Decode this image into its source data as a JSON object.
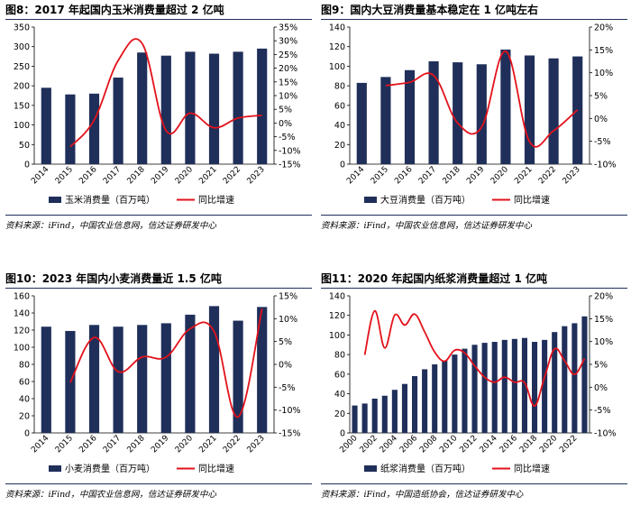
{
  "colors": {
    "bar": "#1f2f5a",
    "line": "#e3121b",
    "rule": "#1f2f5a"
  },
  "charts": [
    {
      "title": "图8：2017 年起国内玉米消费量超过 2 亿吨",
      "source": "资料来源：iFind，中国农业信息网，信达证券研发中心",
      "chart_data": {
        "type": "bar+line",
        "categories": [
          "2014",
          "2015",
          "2016",
          "2017",
          "2018",
          "2019",
          "2020",
          "2021",
          "2022",
          "2023"
        ],
        "series": [
          {
            "name": "玉米消费量（百万吨）",
            "axis": "left",
            "type": "bar",
            "values": [
              195,
              178,
              180,
              221,
              285,
              277,
              287,
              282,
              287,
              295
            ]
          },
          {
            "name": "同比增速",
            "axis": "right",
            "type": "line",
            "values": [
              null,
              -8.7,
              1.1,
              22.8,
              29.0,
              -2.8,
              3.6,
              -1.7,
              1.8,
              2.8
            ]
          }
        ],
        "left_axis": {
          "ylim": [
            0,
            350
          ],
          "ticks": [
            "0",
            "50",
            "100",
            "150",
            "200",
            "250",
            "300",
            "350"
          ]
        },
        "right_axis": {
          "ylim": [
            -15,
            35
          ],
          "ticks": [
            "-15%",
            "-10%",
            "-5%",
            "0%",
            "5%",
            "10%",
            "15%",
            "20%",
            "25%",
            "30%",
            "35%"
          ]
        },
        "legend": {
          "bar_label": "玉米消费量（百万吨）",
          "line_label": "同比增速"
        }
      }
    },
    {
      "title": "图9：国内大豆消费量基本稳定在 1 亿吨左右",
      "source": "资料来源：iFind，中国农业信息网，信达证券研发中心",
      "chart_data": {
        "type": "bar+line",
        "categories": [
          "2014",
          "2015",
          "2016",
          "2017",
          "2018",
          "2019",
          "2020",
          "2021",
          "2022",
          "2023"
        ],
        "series": [
          {
            "name": "大豆消费量（百万吨）",
            "axis": "left",
            "type": "bar",
            "values": [
              83,
              89,
              96,
              105,
              104,
              102,
              117,
              111,
              108,
              110
            ]
          },
          {
            "name": "同比增速",
            "axis": "right",
            "type": "line",
            "values": [
              null,
              7.2,
              7.9,
              9.4,
              -1.0,
              -1.9,
              14.7,
              -5.1,
              -2.7,
              1.9
            ]
          }
        ],
        "left_axis": {
          "ylim": [
            0,
            140
          ],
          "ticks": [
            "0",
            "20",
            "40",
            "60",
            "80",
            "100",
            "120",
            "140"
          ]
        },
        "right_axis": {
          "ylim": [
            -10,
            20
          ],
          "ticks": [
            "-10%",
            "-5%",
            "0%",
            "5%",
            "10%",
            "15%",
            "20%"
          ]
        },
        "legend": {
          "bar_label": "大豆消费量（百万吨）",
          "line_label": "同比增速"
        }
      }
    },
    {
      "title": "图10：2023 年国内小麦消费量近 1.5 亿吨",
      "source": "资料来源：iFind，中国农业信息网，信达证券研发中心",
      "chart_data": {
        "type": "bar+line",
        "categories": [
          "2014",
          "2015",
          "2016",
          "2017",
          "2018",
          "2019",
          "2020",
          "2021",
          "2022",
          "2023"
        ],
        "series": [
          {
            "name": "小麦消费量（百万吨）",
            "axis": "left",
            "type": "bar",
            "values": [
              124,
              119,
              126,
              124,
              126,
              128,
              138,
              148,
              131,
              147
            ]
          },
          {
            "name": "同比增速",
            "axis": "right",
            "type": "line",
            "values": [
              null,
              -4.0,
              5.9,
              -1.6,
              1.6,
              1.6,
              7.8,
              7.2,
              -11.5,
              12.2
            ]
          }
        ],
        "left_axis": {
          "ylim": [
            0,
            160
          ],
          "ticks": [
            "0",
            "20",
            "40",
            "60",
            "80",
            "100",
            "120",
            "140",
            "160"
          ]
        },
        "right_axis": {
          "ylim": [
            -15,
            15
          ],
          "ticks": [
            "-15%",
            "-10%",
            "-5%",
            "0%",
            "5%",
            "10%",
            "15%"
          ]
        },
        "legend": {
          "bar_label": "小麦消费量（百万吨）",
          "line_label": "同比增速"
        }
      }
    },
    {
      "title": "图11：2020 年起国内纸浆消费量超过 1 亿吨",
      "source": "资料来源：iFind，中国造纸协会，信达证券研发中心",
      "chart_data": {
        "type": "bar+line",
        "categories": [
          "2000",
          "2001",
          "2002",
          "2003",
          "2004",
          "2005",
          "2006",
          "2007",
          "2008",
          "2009",
          "2010",
          "2011",
          "2012",
          "2013",
          "2014",
          "2015",
          "2016",
          "2017",
          "2018",
          "2019",
          "2020",
          "2021",
          "2022",
          "2023"
        ],
        "tick_labels": [
          "2000",
          "2002",
          "2004",
          "2006",
          "2008",
          "2010",
          "2012",
          "2014",
          "2016",
          "2018",
          "2020",
          "2022"
        ],
        "series": [
          {
            "name": "纸浆消费量（百万吨）",
            "axis": "left",
            "type": "bar",
            "values": [
              28,
              30,
              35,
              38,
              44,
              50,
              58,
              65,
              70,
              74,
              80,
              86,
              90,
              92,
              93,
              95,
              96,
              97,
              93,
              95,
              103,
              109,
              112,
              119
            ]
          },
          {
            "name": "同比增速",
            "axis": "right",
            "type": "line",
            "values": [
              null,
              7.1,
              16.7,
              8.6,
              15.8,
              13.6,
              16.0,
              12.1,
              7.7,
              5.7,
              8.1,
              7.5,
              4.7,
              2.2,
              1.1,
              2.2,
              1.1,
              1.0,
              -4.1,
              2.2,
              8.4,
              5.8,
              2.8,
              6.3
            ]
          }
        ],
        "left_axis": {
          "ylim": [
            0,
            140
          ],
          "ticks": [
            "0",
            "20",
            "40",
            "60",
            "80",
            "100",
            "120",
            "140"
          ]
        },
        "right_axis": {
          "ylim": [
            -10,
            20
          ],
          "ticks": [
            "-10%",
            "-5%",
            "0%",
            "5%",
            "10%",
            "15%",
            "20%"
          ]
        },
        "legend": {
          "bar_label": "纸浆消费量（百万吨）",
          "line_label": "同比增速"
        }
      }
    }
  ]
}
